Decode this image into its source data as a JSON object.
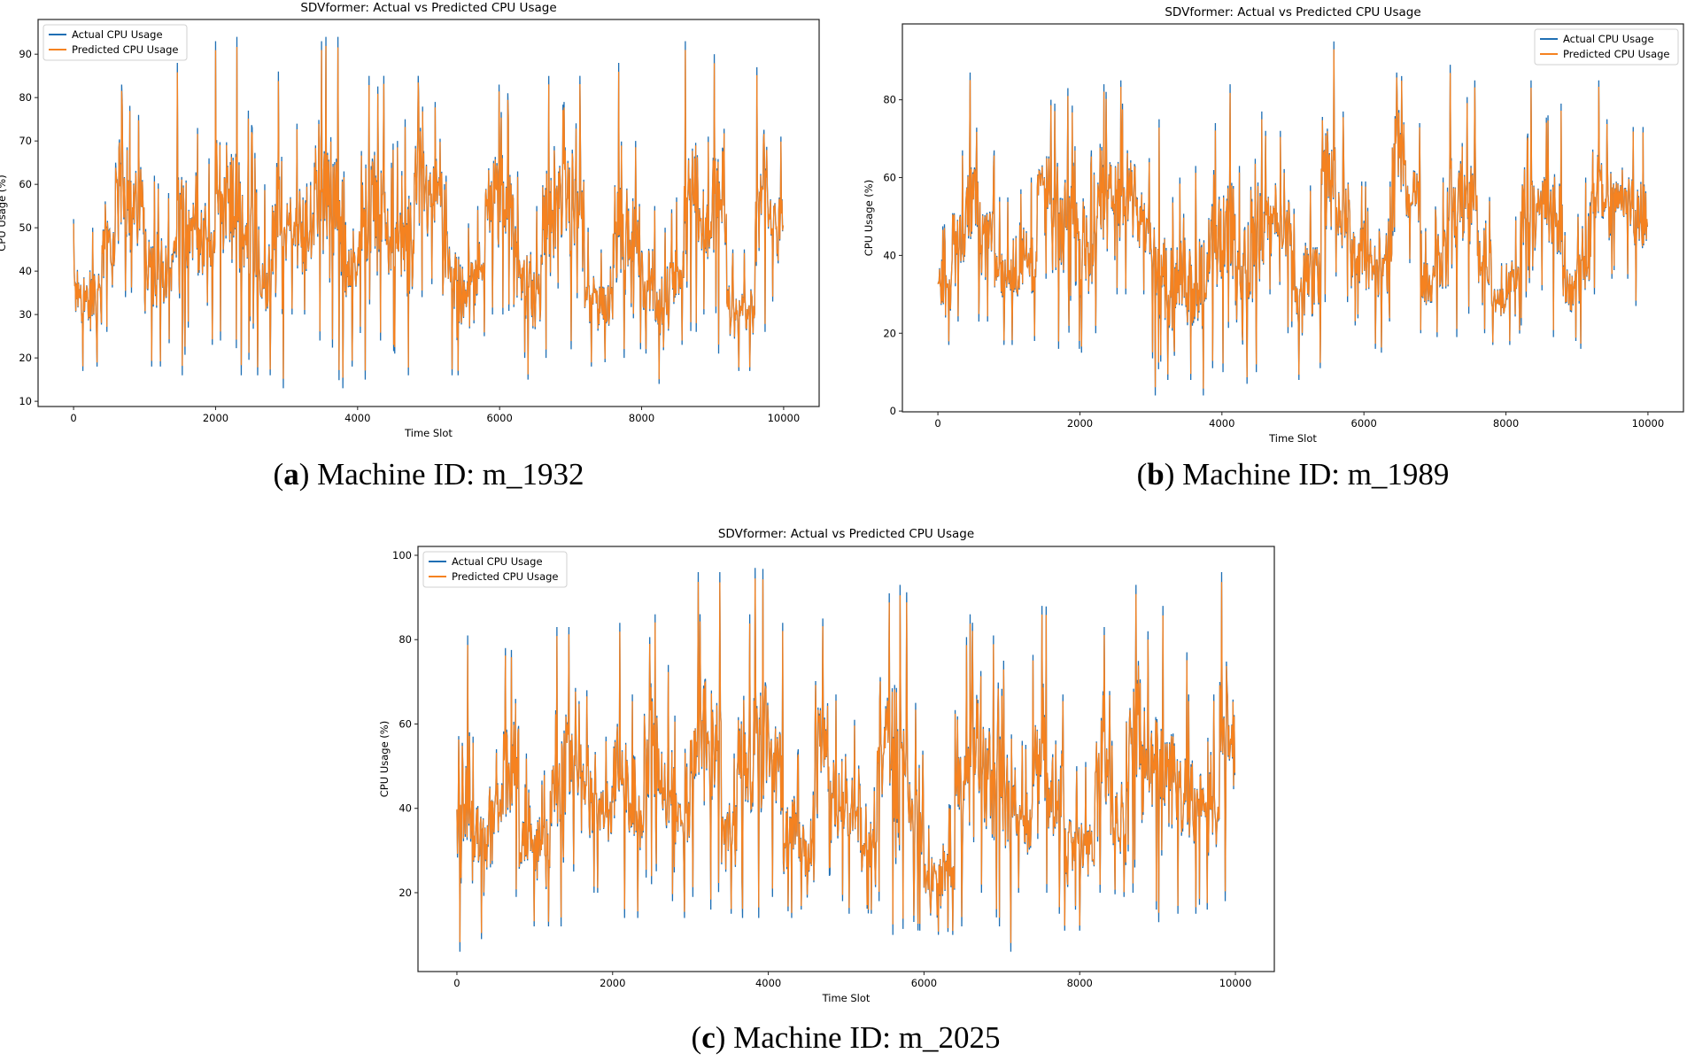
{
  "colors": {
    "actual": "#1f6fb4",
    "predicted": "#f58220"
  },
  "captions": [
    {
      "letter": "a",
      "text": "Machine ID: m_1932"
    },
    {
      "letter": "b",
      "text": "Machine ID: m_1989"
    },
    {
      "letter": "c",
      "text": "Machine ID: m_2025"
    }
  ],
  "chart_data": [
    {
      "type": "line",
      "title": "SDVformer: Actual vs Predicted CPU Usage",
      "xlabel": "Time Slot",
      "ylabel": "CPU Usage (%)",
      "xlim": [
        -500,
        10500
      ],
      "ylim": [
        8.8,
        98
      ],
      "xticks": [
        0,
        2000,
        4000,
        6000,
        8000,
        10000
      ],
      "yticks": [
        10,
        20,
        30,
        40,
        50,
        60,
        70,
        80,
        90
      ],
      "legend": "top-left",
      "grid": false,
      "series_names": [
        "Actual CPU Usage",
        "Predicted CPU Usage"
      ],
      "bin_size": 200,
      "actual_range_per_bin": {
        "low": [
          17,
          18,
          26,
          34,
          35,
          18,
          18,
          16,
          27,
          23,
          24,
          16,
          16,
          16,
          13,
          30,
          30,
          24,
          13,
          18,
          15,
          24,
          21,
          16,
          34,
          37,
          16,
          16,
          25,
          30,
          30,
          20,
          15,
          20,
          36,
          22,
          18,
          19,
          20,
          22,
          21,
          14,
          23,
          26,
          30,
          21,
          17,
          17,
          26,
          33
        ],
        "high": [
          52,
          50,
          65,
          83,
          76,
          62,
          58,
          88,
          73,
          66,
          93,
          94,
          77,
          60,
          86,
          74,
          65,
          94,
          94,
          63,
          85,
          85,
          70,
          75,
          85,
          79,
          62,
          51,
          55,
          83,
          81,
          63,
          55,
          85,
          79,
          85,
          50,
          45,
          88,
          70,
          55,
          50,
          57,
          93,
          71,
          90,
          45,
          45,
          87,
          71
        ]
      }
    },
    {
      "type": "line",
      "title": "SDVformer: Actual vs Predicted CPU Usage",
      "xlabel": "Time Slot",
      "ylabel": "CPU Usage (%)",
      "xlim": [
        -500,
        10500
      ],
      "ylim": [
        -0.2,
        99.5
      ],
      "xticks": [
        0,
        2000,
        4000,
        6000,
        8000,
        10000
      ],
      "yticks": [
        0,
        20,
        40,
        60,
        80
      ],
      "legend": "top-right",
      "grid": false,
      "series_names": [
        "Actual CPU Usage",
        "Predicted CPU Usage"
      ],
      "bin_size": 200,
      "actual_range_per_bin": {
        "low": [
          17,
          23,
          23,
          23,
          17,
          17,
          18,
          34,
          16,
          16,
          15,
          20,
          30,
          30,
          30,
          4,
          8,
          8,
          4,
          11,
          10,
          7,
          10,
          30,
          20,
          8,
          11,
          28,
          28,
          22,
          16,
          15,
          45,
          38,
          20,
          19,
          19,
          25,
          20,
          17,
          17,
          22,
          31,
          19,
          18,
          16,
          30,
          34,
          34,
          27
        ],
        "high": [
          48,
          67,
          87,
          67,
          55,
          57,
          60,
          80,
          79,
          83,
          67,
          84,
          85,
          79,
          65,
          75,
          55,
          60,
          63,
          74,
          84,
          63,
          77,
          72,
          72,
          52,
          58,
          95,
          77,
          59,
          59,
          59,
          87,
          74,
          47,
          60,
          89,
          85,
          55,
          38,
          50,
          85,
          76,
          79,
          46,
          60,
          85,
          75,
          73,
          73
        ]
      }
    },
    {
      "type": "line",
      "title": "SDVformer: Actual vs Predicted CPU Usage",
      "xlabel": "Time Slot",
      "ylabel": "CPU Usage (%)",
      "xlim": [
        -500,
        10500
      ],
      "ylim": [
        1.3,
        102.1
      ],
      "xticks": [
        0,
        2000,
        4000,
        6000,
        8000,
        10000
      ],
      "yticks": [
        20,
        40,
        60,
        80,
        100
      ],
      "legend": "top-left",
      "grid": false,
      "series_names": [
        "Actual CPU Usage",
        "Predicted CPU Usage"
      ],
      "bin_size": 200,
      "actual_range_per_bin": {
        "low": [
          6,
          9,
          26,
          19,
          12,
          12,
          12,
          25,
          20,
          20,
          14,
          14,
          22,
          18,
          14,
          19,
          16,
          15,
          14,
          14,
          19,
          14,
          16,
          24,
          18,
          15,
          15,
          18,
          10,
          11,
          10,
          10,
          12,
          20,
          12,
          6,
          20,
          20,
          15,
          11,
          11,
          20,
          19,
          20,
          16,
          13,
          15,
          15,
          16,
          18
        ],
        "high": [
          81,
          57,
          54,
          78,
          53,
          49,
          83,
          83,
          68,
          57,
          84,
          67,
          86,
          74,
          62,
          96,
          96,
          53,
          86,
          97,
          84,
          54,
          44,
          85,
          67,
          61,
          45,
          91,
          93,
          65,
          36,
          41,
          86,
          84,
          81,
          75,
          56,
          88,
          67,
          50,
          51,
          83,
          56,
          93,
          82,
          88,
          77,
          67,
          67,
          96
        ]
      }
    }
  ]
}
